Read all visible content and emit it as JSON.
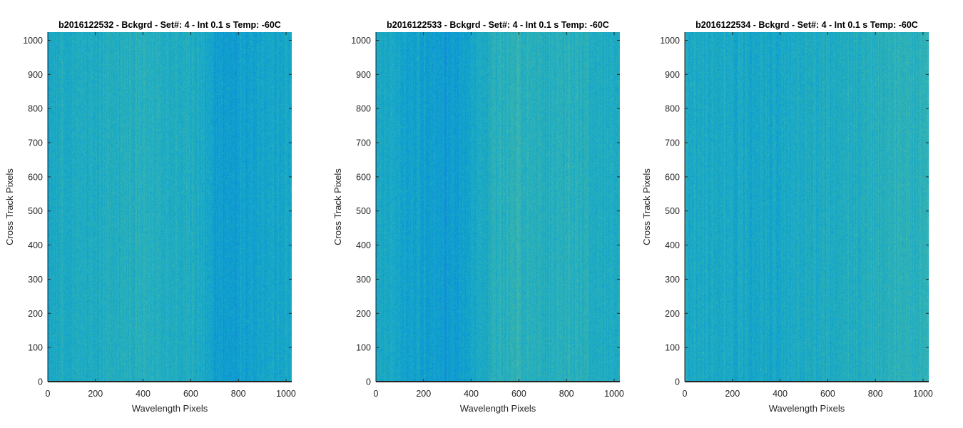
{
  "chart_data": [
    {
      "type": "heatmap",
      "title": "b2016122532 - Bckgrd - Set#: 4 - Int 0.1 s Temp: -60C",
      "xlabel": "Wavelength Pixels",
      "ylabel": "Cross Track Pixels",
      "xlim": [
        0,
        1024
      ],
      "ylim": [
        0,
        1024
      ],
      "xticks": [
        0,
        200,
        400,
        600,
        800,
        1000
      ],
      "yticks": [
        0,
        100,
        200,
        300,
        400,
        500,
        600,
        700,
        800,
        900,
        1000
      ],
      "colormap": [
        "#1a7fd8",
        "#0b9ed2",
        "#22aec0",
        "#45b7a8",
        "#8cc47a"
      ],
      "column_profile": {
        "x": [
          0,
          100,
          200,
          300,
          400,
          500,
          600,
          650,
          700,
          750,
          800,
          900,
          1024
        ],
        "level": [
          0.4,
          0.45,
          0.45,
          0.5,
          0.52,
          0.52,
          0.48,
          0.42,
          0.28,
          0.26,
          0.3,
          0.36,
          0.36
        ]
      }
    },
    {
      "type": "heatmap",
      "title": "b2016122533 - Bckgrd - Set#: 4 - Int 0.1 s Temp: -60C",
      "xlabel": "Wavelength Pixels",
      "ylabel": "Cross Track Pixels",
      "xlim": [
        0,
        1024
      ],
      "ylim": [
        0,
        1024
      ],
      "xticks": [
        0,
        200,
        400,
        600,
        800,
        1000
      ],
      "yticks": [
        0,
        100,
        200,
        300,
        400,
        500,
        600,
        700,
        800,
        900,
        1000
      ],
      "colormap": [
        "#1a7fd8",
        "#0b9ed2",
        "#22aec0",
        "#45b7a8",
        "#8cc47a"
      ],
      "column_profile": {
        "x": [
          0,
          100,
          200,
          300,
          350,
          400,
          500,
          600,
          700,
          800,
          900,
          1024
        ],
        "level": [
          0.4,
          0.38,
          0.32,
          0.26,
          0.28,
          0.36,
          0.52,
          0.58,
          0.52,
          0.55,
          0.5,
          0.45
        ]
      }
    },
    {
      "type": "heatmap",
      "title": "b2016122534 - Bckgrd - Set#: 4 - Int 0.1 s Temp: -60C",
      "xlabel": "Wavelength Pixels",
      "ylabel": "Cross Track Pixels",
      "xlim": [
        0,
        1024
      ],
      "ylim": [
        0,
        1024
      ],
      "xticks": [
        0,
        200,
        400,
        600,
        800,
        1000
      ],
      "yticks": [
        0,
        100,
        200,
        300,
        400,
        500,
        600,
        700,
        800,
        900,
        1000
      ],
      "colormap": [
        "#1a7fd8",
        "#0b9ed2",
        "#22aec0",
        "#45b7a8",
        "#8cc47a"
      ],
      "column_profile": {
        "x": [
          0,
          100,
          200,
          300,
          400,
          500,
          600,
          700,
          800,
          900,
          1024
        ],
        "level": [
          0.42,
          0.42,
          0.4,
          0.38,
          0.4,
          0.43,
          0.46,
          0.48,
          0.52,
          0.58,
          0.56
        ]
      }
    }
  ]
}
